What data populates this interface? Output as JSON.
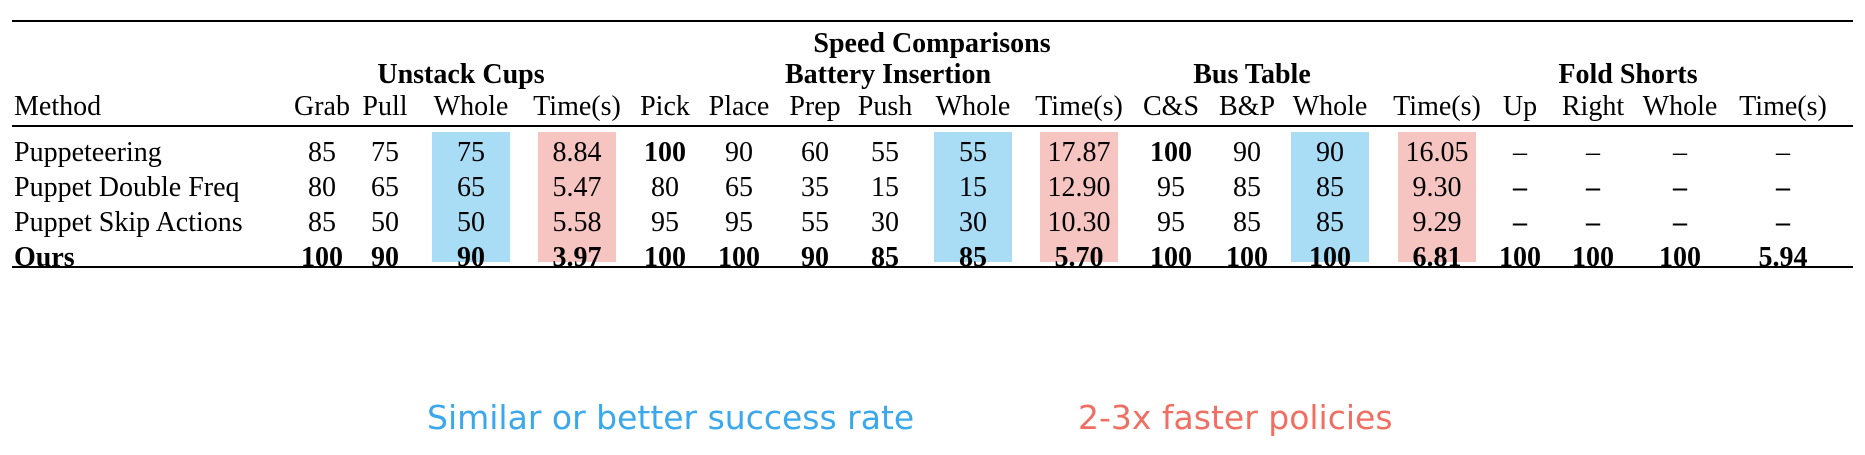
{
  "title": "Speed Comparisons",
  "groups": [
    "Unstack Cups",
    "Battery Insertion",
    "Bus Table",
    "Fold Shorts"
  ],
  "method_header": "Method",
  "columns": [
    "Grab",
    "Pull",
    "Whole",
    "Time(s)",
    "Pick",
    "Place",
    "Prep",
    "Push",
    "Whole",
    "Time(s)",
    "C&S",
    "B&P",
    "Whole",
    "Time(s)",
    "Up",
    "Right",
    "Whole",
    "Time(s)"
  ],
  "rows": [
    {
      "method": "Puppeteering",
      "bold_method": false,
      "values": [
        "85",
        "75",
        "75",
        "8.84",
        "100",
        "90",
        "60",
        "55",
        "55",
        "17.87",
        "100",
        "90",
        "90",
        "16.05",
        "–",
        "–",
        "–",
        "–"
      ],
      "bold": [
        false,
        false,
        false,
        false,
        true,
        false,
        false,
        false,
        false,
        false,
        true,
        false,
        false,
        false,
        false,
        false,
        false,
        false
      ]
    },
    {
      "method": "Puppet Double Freq",
      "bold_method": false,
      "values": [
        "80",
        "65",
        "65",
        "5.47",
        "80",
        "65",
        "35",
        "15",
        "15",
        "12.90",
        "95",
        "85",
        "85",
        "9.30",
        "–",
        "–",
        "–",
        "–"
      ],
      "bold": [
        false,
        false,
        false,
        false,
        false,
        false,
        false,
        false,
        false,
        false,
        false,
        false,
        false,
        false,
        true,
        true,
        true,
        true
      ]
    },
    {
      "method": "Puppet Skip Actions",
      "bold_method": false,
      "values": [
        "85",
        "50",
        "50",
        "5.58",
        "95",
        "95",
        "55",
        "30",
        "30",
        "10.30",
        "95",
        "85",
        "85",
        "9.29",
        "–",
        "–",
        "–",
        "–"
      ],
      "bold": [
        false,
        false,
        false,
        false,
        false,
        false,
        false,
        false,
        false,
        false,
        false,
        false,
        false,
        false,
        true,
        true,
        true,
        true
      ]
    },
    {
      "method": "Ours",
      "bold_method": true,
      "values": [
        "100",
        "90",
        "90",
        "3.97",
        "100",
        "100",
        "90",
        "85",
        "85",
        "5.70",
        "100",
        "100",
        "100",
        "6.81",
        "100",
        "100",
        "100",
        "5.94"
      ],
      "bold": [
        true,
        true,
        true,
        true,
        true,
        true,
        true,
        true,
        true,
        true,
        true,
        true,
        true,
        true,
        true,
        true,
        true,
        true
      ]
    }
  ],
  "highlights": {
    "blue_columns": [
      2,
      8,
      12
    ],
    "red_columns": [
      3,
      9,
      13
    ],
    "blue_color": "#a9dcf5",
    "red_color": "#f7c5c1"
  },
  "captions": {
    "success": "Similar or better success rate",
    "speed": "2-3x faster policies",
    "success_color": "#3aa8ea",
    "speed_color": "#ef6f63"
  }
}
